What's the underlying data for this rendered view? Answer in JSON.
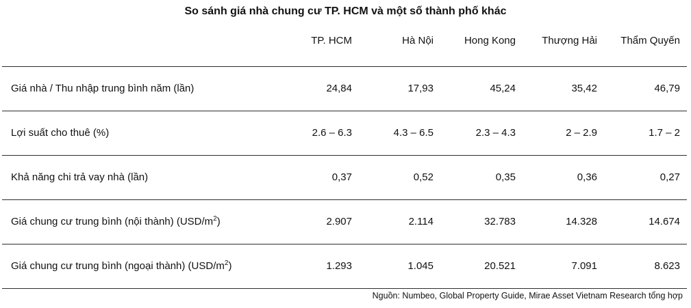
{
  "title": "So sánh giá nhà chung cư TP. HCM và một số thành phố khác",
  "columns": [
    "TP. HCM",
    "Hà Nội",
    "Hong Kong",
    "Thượng Hải",
    "Thẩm Quyến"
  ],
  "rows": [
    {
      "label": "Giá nhà / Thu nhập trung bình năm (lần)",
      "unit_sup": "",
      "label_suffix": "",
      "values": [
        "24,84",
        "17,93",
        "45,24",
        "35,42",
        "46,79"
      ]
    },
    {
      "label": "Lợi suất cho thuê (%)",
      "unit_sup": "",
      "label_suffix": "",
      "values": [
        "2.6 – 6.3",
        "4.3 – 6.5",
        "2.3 – 4.3",
        "2 – 2.9",
        "1.7 – 2"
      ]
    },
    {
      "label": "Khả năng chi trả vay nhà (lần)",
      "unit_sup": "",
      "label_suffix": "",
      "values": [
        "0,37",
        "0,52",
        "0,35",
        "0,36",
        "0,27"
      ]
    },
    {
      "label": "Giá chung cư trung bình (nội thành) (USD/m",
      "unit_sup": "2",
      "label_suffix": ")",
      "values": [
        "2.907",
        "2.114",
        "32.783",
        "14.328",
        "14.674"
      ]
    },
    {
      "label": "Giá chung cư trung bình (ngoại thành) (USD/m",
      "unit_sup": "2",
      "label_suffix": ")",
      "values": [
        "1.293",
        "1.045",
        "20.521",
        "7.091",
        "8.623"
      ]
    }
  ],
  "source": "Nguồn: Numbeo, Global Property Guide, Mirae Asset Vietnam Research tổng hợp"
}
